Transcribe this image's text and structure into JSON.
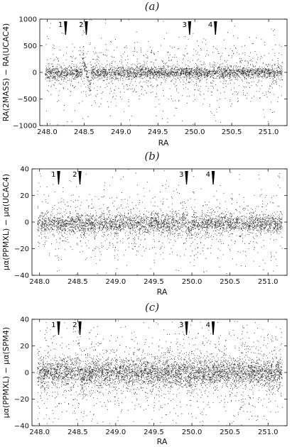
{
  "chart_data": [
    {
      "type": "scatter",
      "panel_tag": "(a)",
      "xlabel": "RA",
      "ylabel": "RA(2MASS) − RA(UCAC4)",
      "xlim": [
        247.9,
        251.25
      ],
      "ylim": [
        -1000,
        1000
      ],
      "xticks": [
        248.0,
        248.5,
        249.0,
        249.5,
        250.0,
        250.5,
        251.0
      ],
      "xtick_labels": [
        "248.0",
        "248.5",
        "249.0",
        "249.5",
        "250.0",
        "250.5",
        "251.0"
      ],
      "yticks": [
        -1000,
        -500,
        0,
        500,
        1000
      ],
      "ytick_labels": [
        "−1000",
        "−500",
        "0",
        "500",
        "1000"
      ],
      "grid": false,
      "markers": [
        {
          "label": "1",
          "x": 248.25
        },
        {
          "label": "2",
          "x": 248.53
        },
        {
          "label": "3",
          "x": 249.93
        },
        {
          "label": "4",
          "x": 250.28
        }
      ],
      "series": [
        {
          "n_points": 3600,
          "center_y": 0,
          "core_spread": 60,
          "wide_spread": 280,
          "extra_features": [
            248.53
          ],
          "feature_amplitude": 320
        }
      ]
    },
    {
      "type": "scatter",
      "panel_tag": "(b)",
      "xlabel": "RA",
      "ylabel": "μα(PPMXL) − μα(UCAC4)",
      "xlim": [
        247.9,
        251.25
      ],
      "ylim": [
        -40,
        40
      ],
      "xticks": [
        248.0,
        248.5,
        249.0,
        249.5,
        250.0,
        250.5,
        251.0
      ],
      "xtick_labels": [
        "248.0",
        "248.5",
        "249.0",
        "249.5",
        "250.0",
        "250.5",
        "251.0"
      ],
      "yticks": [
        -40,
        -20,
        0,
        20,
        40
      ],
      "ytick_labels": [
        "−40",
        "−20",
        "0",
        "20",
        "40"
      ],
      "grid": false,
      "markers": [
        {
          "label": "1",
          "x": 248.25
        },
        {
          "label": "2",
          "x": 248.53
        },
        {
          "label": "3",
          "x": 249.93
        },
        {
          "label": "4",
          "x": 250.28
        }
      ],
      "series": [
        {
          "n_points": 3800,
          "center_y": -1,
          "core_spread": 3.5,
          "wide_spread": 12,
          "extra_features": [
            248.53,
            249.93
          ],
          "feature_amplitude": 4
        }
      ]
    },
    {
      "type": "scatter",
      "panel_tag": "(c)",
      "xlabel": "RA",
      "ylabel": "μα(PPMXL) − μα(SPM4)",
      "xlim": [
        247.9,
        251.25
      ],
      "ylim": [
        -40,
        40
      ],
      "xticks": [
        248.0,
        248.5,
        249.0,
        249.5,
        250.0,
        250.5,
        251.0
      ],
      "xtick_labels": [
        "248.0",
        "248.5",
        "249.0",
        "249.5",
        "250.0",
        "250.5",
        "251.0"
      ],
      "yticks": [
        -40,
        -20,
        0,
        20,
        40
      ],
      "ytick_labels": [
        "−40",
        "−20",
        "0",
        "20",
        "40"
      ],
      "grid": false,
      "markers": [
        {
          "label": "1",
          "x": 248.25
        },
        {
          "label": "2",
          "x": 248.53
        },
        {
          "label": "3",
          "x": 249.93
        },
        {
          "label": "4",
          "x": 250.28
        }
      ],
      "series": [
        {
          "n_points": 5200,
          "center_y": 0,
          "core_spread": 5,
          "wide_spread": 16,
          "extra_features": [
            248.53,
            249.93
          ],
          "feature_amplitude": 5
        }
      ]
    }
  ]
}
